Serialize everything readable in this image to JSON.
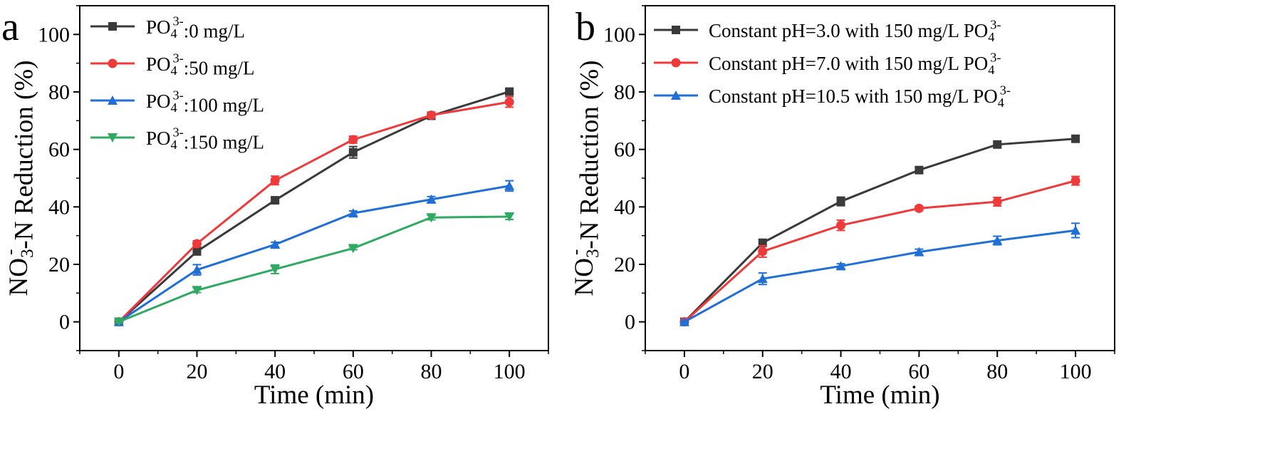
{
  "colors": {
    "black": "#3a3a3a",
    "red": "#ee3a3a",
    "blue": "#1f6fd6",
    "green": "#2eaa62"
  },
  "chart_data": [
    {
      "panel": "a",
      "type": "line",
      "xlabel": "Time (min)",
      "ylabel": {
        "base": "NO",
        "sub": "3",
        "sup": "-",
        "rest": "-N Reduction  (%)"
      },
      "xlim": [
        -10,
        110
      ],
      "ylim": [
        -10,
        110
      ],
      "xticks": [
        0,
        20,
        40,
        60,
        80,
        100
      ],
      "yticks": [
        0,
        20,
        40,
        60,
        80,
        100
      ],
      "legend_position": "top-left",
      "x": [
        0,
        20,
        40,
        60,
        80,
        100
      ],
      "series": [
        {
          "name": {
            "base": "PO",
            "sub": "4",
            "sup": "3-",
            "rest": ":0 mg/L"
          },
          "color": "#3a3a3a",
          "marker": "square",
          "values": [
            0,
            24.5,
            42.3,
            59.0,
            71.7,
            80.1
          ],
          "errors": [
            0.3,
            1.0,
            0.8,
            2.0,
            0.8,
            0.8
          ]
        },
        {
          "name": {
            "base": "PO",
            "sub": "4",
            "sup": "3-",
            "rest": ":50 mg/L"
          },
          "color": "#ee3a3a",
          "marker": "circle",
          "values": [
            0,
            27.2,
            49.2,
            63.4,
            71.9,
            76.5
          ],
          "errors": [
            0.3,
            1.0,
            1.5,
            1.2,
            0.8,
            1.8
          ]
        },
        {
          "name": {
            "base": "PO",
            "sub": "4",
            "sup": "3-",
            "rest": ":100 mg/L"
          },
          "color": "#1f6fd6",
          "marker": "triangle-up",
          "values": [
            0,
            18.1,
            26.9,
            37.8,
            42.6,
            47.3
          ],
          "errors": [
            0.3,
            1.8,
            0.8,
            0.8,
            1.0,
            1.8
          ]
        },
        {
          "name": {
            "base": "PO",
            "sub": "4",
            "sup": "3-",
            "rest": ":150 mg/L"
          },
          "color": "#2eaa62",
          "marker": "triangle-down",
          "values": [
            0,
            11.0,
            18.3,
            25.6,
            36.3,
            36.6
          ],
          "errors": [
            0.3,
            0.8,
            1.5,
            0.5,
            0.8,
            1.0
          ]
        }
      ]
    },
    {
      "panel": "b",
      "type": "line",
      "xlabel": "Time (min)",
      "ylabel": {
        "base": "NO",
        "sub": "3",
        "sup": "-",
        "rest": "-N Reduction  (%)"
      },
      "xlim": [
        -10,
        110
      ],
      "ylim": [
        -10,
        110
      ],
      "xticks": [
        0,
        20,
        40,
        60,
        80,
        100
      ],
      "yticks": [
        0,
        20,
        40,
        60,
        80,
        100
      ],
      "legend_position": "top-left",
      "x": [
        0,
        20,
        40,
        60,
        80,
        100
      ],
      "series": [
        {
          "name": {
            "base": "Constant pH=3.0 with 150 mg/L PO",
            "sub": "4",
            "sup": "3-",
            "rest": ""
          },
          "color": "#3a3a3a",
          "marker": "square",
          "values": [
            0,
            27.5,
            41.9,
            52.8,
            61.7,
            63.7
          ],
          "errors": [
            0.3,
            1.2,
            1.5,
            1.0,
            0.8,
            0.8
          ]
        },
        {
          "name": {
            "base": "Constant pH=7.0 with 150 mg/L PO",
            "sub": "4",
            "sup": "3-",
            "rest": ""
          },
          "color": "#ee3a3a",
          "marker": "circle",
          "values": [
            0,
            24.5,
            33.6,
            39.5,
            41.8,
            49.1
          ],
          "errors": [
            0.3,
            2.0,
            1.8,
            0.8,
            1.5,
            1.5
          ]
        },
        {
          "name": {
            "base": "Constant pH=10.5 with 150 mg/L PO",
            "sub": "4",
            "sup": "3-",
            "rest": ""
          },
          "color": "#1f6fd6",
          "marker": "triangle-up",
          "values": [
            0,
            15.0,
            19.4,
            24.3,
            28.3,
            31.8
          ],
          "errors": [
            0.3,
            2.0,
            0.8,
            1.0,
            1.5,
            2.5
          ]
        }
      ]
    }
  ]
}
